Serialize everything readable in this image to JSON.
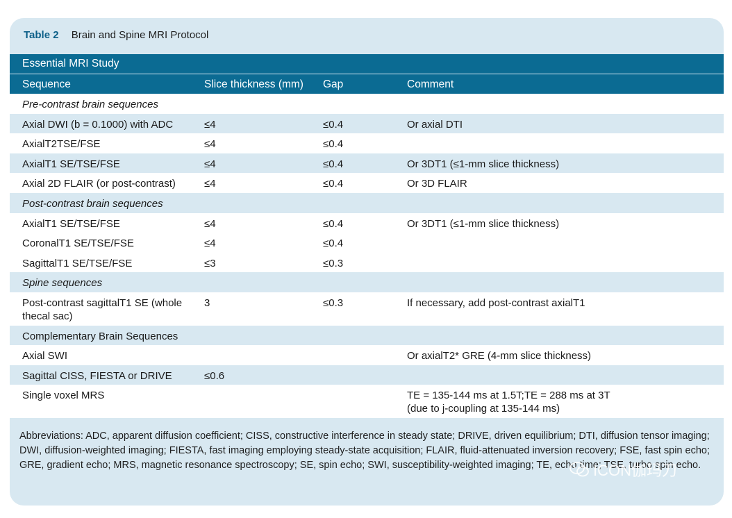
{
  "caption": {
    "number": "Table 2",
    "title": "Brain and Spine MRI Protocol"
  },
  "header": {
    "group": "Essential MRI Study",
    "columns": [
      "Sequence",
      "Slice thickness (mm)",
      "Gap",
      "Comment"
    ]
  },
  "rows": [
    {
      "type": "section",
      "bg": "white",
      "label": "Pre-contrast brain sequences"
    },
    {
      "type": "data",
      "bg": "blue",
      "cells": [
        "Axial DWI (b = 0.1000) with ADC",
        "≤4",
        "≤0.4",
        "Or axial DTI"
      ]
    },
    {
      "type": "data",
      "bg": "white",
      "cells": [
        "AxialT2TSE/FSE",
        "≤4",
        "≤0.4",
        ""
      ]
    },
    {
      "type": "data",
      "bg": "blue",
      "cells": [
        "AxialT1 SE/TSE/FSE",
        "≤4",
        "≤0.4",
        "Or 3DT1 (≤1-mm slice thickness)"
      ]
    },
    {
      "type": "data",
      "bg": "white",
      "cells": [
        "Axial 2D FLAIR (or post-contrast)",
        "≤4",
        "≤0.4",
        "Or 3D FLAIR"
      ]
    },
    {
      "type": "section",
      "bg": "blue",
      "label": "Post-contrast brain sequences"
    },
    {
      "type": "data",
      "bg": "white",
      "cells": [
        "AxialT1 SE/TSE/FSE",
        "≤4",
        "≤0.4",
        "Or 3DT1 (≤1-mm slice thickness)"
      ]
    },
    {
      "type": "data",
      "bg": "white",
      "cells": [
        "CoronalT1 SE/TSE/FSE",
        "≤4",
        "≤0.4",
        ""
      ]
    },
    {
      "type": "data",
      "bg": "white",
      "cells": [
        "SagittalT1 SE/TSE/FSE",
        "≤3",
        "≤0.3",
        ""
      ]
    },
    {
      "type": "section",
      "bg": "blue",
      "label": "Spine sequences"
    },
    {
      "type": "data",
      "bg": "white",
      "tall": true,
      "cells": [
        "Post-contrast sagittalT1 SE (whole thecal sac)",
        "3",
        "≤0.3",
        "If necessary, add post-contrast axialT1"
      ]
    },
    {
      "type": "group",
      "bg": "blue",
      "label": "Complementary Brain Sequences"
    },
    {
      "type": "data",
      "bg": "white",
      "cells": [
        "Axial SWI",
        "",
        "",
        "Or axialT2* GRE (4-mm slice thickness)"
      ]
    },
    {
      "type": "data",
      "bg": "blue",
      "cells": [
        "Sagittal CISS, FIESTA or DRIVE",
        "≤0.6",
        "",
        ""
      ]
    },
    {
      "type": "data",
      "bg": "white",
      "tall": true,
      "cells": [
        "Single voxel MRS",
        "",
        "",
        "TE = 135-144 ms at 1.5T;TE = 288 ms at 3T (due to j-coupling at 135-144 ms)"
      ]
    }
  ],
  "footnote": "Abbreviations: ADC, apparent diffusion coefficient; CISS, constructive interference in steady state; DRIVE, driven equilibrium; DTI, diffusion tensor imaging; DWI, diffusion-weighted imaging; FIESTA, fast imaging employing steady-state acquisition; FLAIR, fluid-attenuated inversion recovery; FSE, fast spin echo; GRE, gradient echo; MRS, magnetic resonance spectroscopy; SE, spin echo; SWI, susceptibility-weighted imaging; TE, echo time; TSE, turbo spin echo.",
  "watermark": {
    "text": "ICON伽玛刀",
    "icon": "wechat-icon"
  },
  "colors": {
    "header_bg": "#0b6b93",
    "band_bg": "#d8e8f1",
    "caption_num": "#0c5f88"
  }
}
